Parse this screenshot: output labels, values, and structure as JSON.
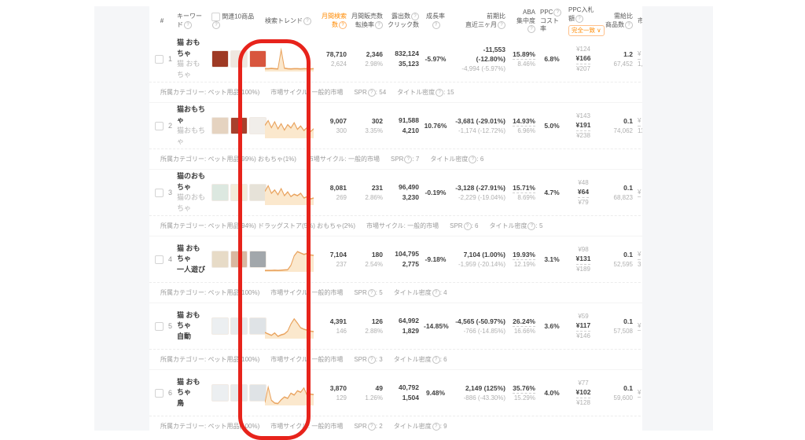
{
  "colors": {
    "accent_orange": "#ff8a00",
    "annotation_red": "#e7231b",
    "page_bg": "#f5f6f8"
  },
  "labels": {
    "category": "所属カテゴリー:",
    "cycle": "市場サイクル:",
    "spr": "SPR",
    "density": "タイトル密度",
    "sep": ":"
  },
  "header": {
    "cols": [
      {
        "label": "#"
      },
      {
        "label": "キーワード"
      },
      {
        "label": "関連10商品"
      },
      {
        "label": "検索トレンド"
      },
      {
        "label": "月間検索数"
      },
      {
        "label": "月間販売数",
        "label2": "転換率"
      },
      {
        "label": "露出数",
        "label2": "クリック数"
      },
      {
        "label": "成長率"
      },
      {
        "label": "前期比",
        "label2": "直近三ヶ月"
      },
      {
        "label": "ABA",
        "label2": "集中度"
      },
      {
        "label": "PPC",
        "label2": "コスト率"
      },
      {
        "label": "PPC入札額",
        "badge": "完全一致",
        "badge_arrow": "∨"
      },
      {
        "label": "需給比",
        "label2": "商品数"
      },
      {
        "label": "市"
      }
    ]
  },
  "rows": [
    {
      "num": "1",
      "kw": "猫 おもちゃ",
      "kw2": "猫 おもちゃ",
      "kw2_gray": true,
      "thumbs": [
        "#9e3a24",
        "#efe7e0",
        "#d8563e"
      ],
      "trend": [
        12,
        12,
        13,
        12,
        11,
        92,
        14,
        12,
        11,
        12,
        12,
        11,
        12,
        12,
        11,
        12
      ],
      "search_top": "78,710",
      "search_bot": "2,624",
      "sales_top": "2,346",
      "sales_bot": "2.98%",
      "expo_top": "832,124",
      "expo_bot": "35,123",
      "growth": "-5.97%",
      "prev_top": "-11,553 (-12.80%)",
      "prev_bot": "-4,994 (-5.97%)",
      "aba_top": "15.89%",
      "aba_bot": "8.46%",
      "ppc": "6.8%",
      "bid_low": "¥124",
      "bid_mid": "¥166",
      "bid_high": "¥207",
      "ratio_top": "1.2",
      "ratio_bot": "67,452",
      "market_top": "¥",
      "market_bot": "1,",
      "categories": "ペット用品(100%)",
      "cycle": "一般的市場",
      "spr": "54",
      "density": "15"
    },
    {
      "num": "2",
      "kw": "猫おもちゃ",
      "kw2": "猫おもちゃ",
      "kw2_gray": true,
      "thumbs": [
        "#e5d3c0",
        "#a8402c",
        "#f1eeea"
      ],
      "trend": [
        55,
        75,
        45,
        70,
        40,
        62,
        35,
        58,
        44,
        66,
        38,
        52,
        33,
        46,
        28,
        40
      ],
      "search_top": "9,007",
      "search_bot": "300",
      "sales_top": "302",
      "sales_bot": "3.35%",
      "expo_top": "91,588",
      "expo_bot": "4,210",
      "growth": "10.76%",
      "prev_top": "-3,681 (-29.01%)",
      "prev_bot": "-1,174 (-12.72%)",
      "aba_top": "14.93%",
      "aba_bot": "6.96%",
      "ppc": "5.0%",
      "bid_low": "¥143",
      "bid_mid": "¥191",
      "bid_high": "¥238",
      "ratio_top": "0.1",
      "ratio_bot": "74,062",
      "market_top": "¥",
      "market_bot": "11,",
      "categories": "ペット用品(99%) おもちゃ(1%)",
      "cycle": "一般的市場",
      "spr": "7",
      "density": "6"
    },
    {
      "num": "3",
      "kw": "猫のおもちゃ",
      "kw2": "猫のおもちゃ",
      "kw2_gray": true,
      "thumbs": [
        "#dce8e0",
        "#f3ecd9",
        "#e6e2d8"
      ],
      "trend": [
        58,
        82,
        50,
        64,
        44,
        70,
        40,
        56,
        36,
        46,
        40,
        50,
        30,
        36,
        26,
        30
      ],
      "search_top": "8,081",
      "search_bot": "269",
      "sales_top": "231",
      "sales_bot": "2.86%",
      "expo_top": "96,490",
      "expo_bot": "3,230",
      "growth": "-0.19%",
      "prev_top": "-3,128 (-27.91%)",
      "prev_bot": "-2,229 (-19.04%)",
      "aba_top": "15.71%",
      "aba_bot": "8.69%",
      "ppc": "4.7%",
      "bid_low": "¥48",
      "bid_mid": "¥64",
      "bid_high": "¥79",
      "ratio_top": "0.1",
      "ratio_bot": "68,823",
      "market_top": "¥",
      "market_bot": "",
      "categories": "ペット用品(94%) ドラッグストア(5%) おもちゃ(2%)",
      "cycle": "一般的市場",
      "spr": "6",
      "density": "5"
    },
    {
      "num": "4",
      "kw": "猫 おもちゃ",
      "kw2": "一人遊び",
      "kw2_gray": false,
      "thumbs": [
        "#e7dbc7",
        "#d9b7a0",
        "#a2a7ab"
      ],
      "trend": [
        6,
        6,
        6,
        7,
        6,
        7,
        8,
        9,
        28,
        68,
        86,
        80,
        74,
        78,
        72,
        70
      ],
      "search_top": "7,104",
      "search_bot": "237",
      "sales_top": "180",
      "sales_bot": "2.54%",
      "expo_top": "104,795",
      "expo_bot": "2,775",
      "growth": "-9.18%",
      "prev_top": "7,104 (1.00%)",
      "prev_bot": "-1,959 (-20.14%)",
      "aba_top": "19.93%",
      "aba_bot": "12.19%",
      "ppc": "3.1%",
      "bid_low": "¥98",
      "bid_mid": "¥131",
      "bid_high": "¥189",
      "ratio_top": "0.1",
      "ratio_bot": "52,595",
      "market_top": "¥",
      "market_bot": "3",
      "categories": "ペット用品(100%)",
      "cycle": "一般的市場",
      "spr": "5",
      "density": "4"
    },
    {
      "num": "5",
      "kw": "猫 おもちゃ",
      "kw2": "自動",
      "kw2_gray": false,
      "thumbs": [
        "#eceff1",
        "#e8eaec",
        "#dfe3e6"
      ],
      "trend": [
        26,
        20,
        14,
        24,
        10,
        16,
        20,
        32,
        62,
        84,
        66,
        46,
        40,
        36,
        32,
        30
      ],
      "search_top": "4,391",
      "search_bot": "146",
      "sales_top": "126",
      "sales_bot": "2.88%",
      "expo_top": "64,992",
      "expo_bot": "1,829",
      "growth": "-14.85%",
      "prev_top": "-4,565 (-50.97%)",
      "prev_bot": "-766 (-14.85%)",
      "aba_top": "26.24%",
      "aba_bot": "16.66%",
      "ppc": "3.6%",
      "bid_low": "¥59",
      "bid_mid": "¥117",
      "bid_high": "¥146",
      "ratio_top": "0.1",
      "ratio_bot": "57,508",
      "market_top": "¥",
      "market_bot": "",
      "categories": "ペット用品(100%)",
      "cycle": "一般的市場",
      "spr": "3",
      "density": "6"
    },
    {
      "num": "6",
      "kw": "猫 おもちゃ",
      "kw2": "鳥",
      "kw2_gray": false,
      "thumbs": [
        "#eceff1",
        "#e8eaec",
        "#dfe3e6"
      ],
      "trend": [
        12,
        78,
        22,
        10,
        8,
        24,
        36,
        30,
        52,
        44,
        62,
        56,
        74,
        42,
        48,
        46
      ],
      "search_top": "3,870",
      "search_bot": "129",
      "sales_top": "49",
      "sales_bot": "1.26%",
      "expo_top": "40,792",
      "expo_bot": "1,504",
      "growth": "9.48%",
      "prev_top": "2,149 (125%)",
      "prev_bot": "-886 (-43.30%)",
      "aba_top": "35.76%",
      "aba_bot": "15.29%",
      "ppc": "4.0%",
      "bid_low": "¥77",
      "bid_mid": "¥102",
      "bid_high": "¥128",
      "ratio_top": "0.1",
      "ratio_bot": "59,600",
      "market_top": "¥",
      "market_bot": "",
      "categories": "ペット用品(100%)",
      "cycle": "一般的市場",
      "spr": "2",
      "density": "9"
    }
  ]
}
